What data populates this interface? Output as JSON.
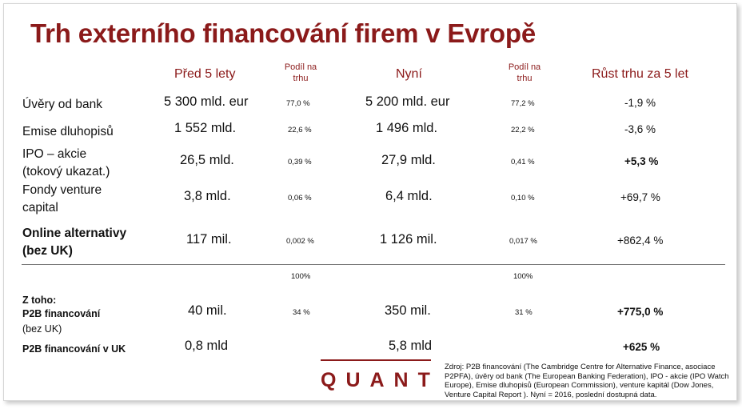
{
  "title": "Trh externího financování firem v Evropě",
  "headers": {
    "before": "Před 5 lety",
    "share_before": [
      "Podíl na",
      "trhu"
    ],
    "now": "Nyní",
    "share_now": [
      "Podíl na",
      "trhu"
    ],
    "growth": "Růst trhu za 5 let"
  },
  "rows": [
    {
      "label": [
        "Úvěry od bank"
      ],
      "before": "5 300 mld. eur",
      "share_before": "77,0 %",
      "now": "5 200 mld. eur",
      "share_now": "77,2 %",
      "growth": "-1,9 %"
    },
    {
      "label": [
        "Emise dluhopisů"
      ],
      "before": "1 552 mld.",
      "share_before": "22,6 %",
      "now": "1 496 mld.",
      "share_now": "22,2 %",
      "growth": "-3,6 %"
    },
    {
      "label": [
        "IPO – akcie",
        "(tokový ukazat.)"
      ],
      "before": "26,5 mld.",
      "share_before": "0,39 %",
      "now": "27,9 mld.",
      "share_now": "0,41 %",
      "growth": "+5,3 %"
    },
    {
      "label": [
        "Fondy venture",
        "capital"
      ],
      "before": "3,8 mld.",
      "share_before": "0,06 %",
      "now": "6,4 mld.",
      "share_now": "0,10 %",
      "growth": "+69,7 %"
    },
    {
      "label": [
        "Online alternativy",
        "(bez UK)"
      ],
      "before": "117 mil.",
      "share_before": "0,002 %",
      "now": "1 126 mil.",
      "share_now": "0,017 %",
      "growth": "+862,4 %"
    }
  ],
  "totals": {
    "share_before": "100%",
    "share_now": "100%"
  },
  "sub": {
    "heading": "Z toho:",
    "p2b_label": [
      "P2B financování",
      "(bez UK)"
    ],
    "p2b_before": "40 mil.",
    "p2b_share_before": "34 %",
    "p2b_now": "350 mil.",
    "p2b_share_now": "31 %",
    "p2b_growth": "+775,0 %",
    "uk_label": "P2B financování v UK",
    "uk_before": "0,8 mld",
    "uk_now": "5,8 mld",
    "uk_growth": "+625 %"
  },
  "brand": "QUANT",
  "source": "Zdroj: P2B financování (The Cambridge Centre for Alternative Finance, asociace P2PFA), úvěry od bank (The European Banking Federation), IPO - akcie (IPO Watch Europe), Emise dluhopisů (European Commission), venture kapitál (Dow Jones, Venture Capital Report ). Nyní = 2016, poslední dostupná data."
}
